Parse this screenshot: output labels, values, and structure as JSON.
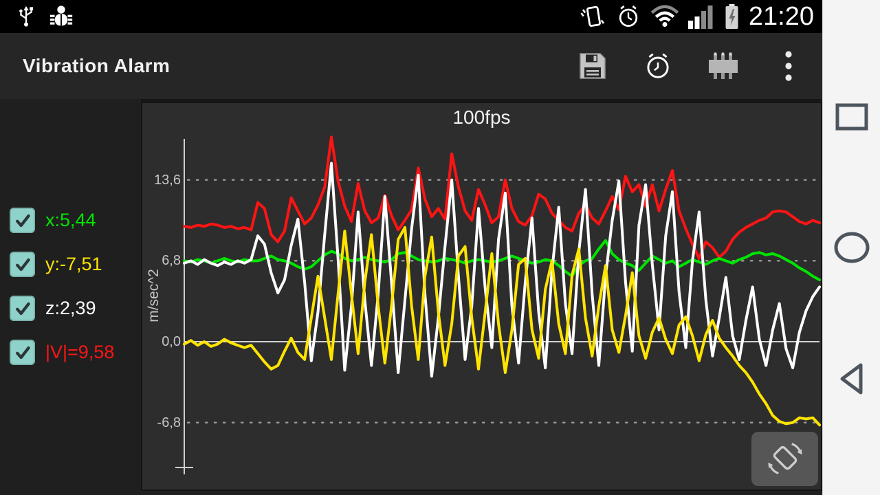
{
  "ui_colors": {
    "checkbox": "#8fd2c9",
    "chart_background": "#2d2d2d",
    "toolbar_background": "#262626",
    "navbar_background": "#f4f4f4",
    "x_green": "#00e400",
    "y_yellow": "#ffe400",
    "z_white": "#ffffff",
    "v_red": "#ff1414"
  },
  "status_bar": {
    "time": "21:20",
    "icons_left": [
      "usb-icon",
      "debug-bug-icon"
    ],
    "icons_right": [
      "vibrate-icon",
      "alarm-icon",
      "wifi-icon",
      "cell-signal-icon",
      "battery-charging-icon"
    ]
  },
  "toolbar": {
    "title": "Vibration Alarm",
    "actions": [
      "save",
      "alarm",
      "sensor-chip",
      "overflow-menu"
    ]
  },
  "legend": {
    "items": [
      {
        "id": "x",
        "label": "x:5,44",
        "color": "#00e400",
        "checked": true
      },
      {
        "id": "y",
        "label": "y:-7,51",
        "color": "#ffe400",
        "checked": true
      },
      {
        "id": "z",
        "label": "z:2,39",
        "color": "#ffffff",
        "checked": true
      },
      {
        "id": "v",
        "label": "|V|=9,58",
        "color": "#ff1414",
        "checked": true
      }
    ]
  },
  "chart": {
    "title": "100fps",
    "ylabel": "m/sec^2"
  },
  "chart_data": {
    "type": "line",
    "title": "100fps",
    "xlabel": "",
    "ylabel": "m/sec^2",
    "ylim": [
      -11,
      17.3
    ],
    "x_axis": {
      "tick_labels_visible": false,
      "n_points": 96
    },
    "yticks": [
      {
        "label": "13,6",
        "value": 13.6,
        "grid": "dotted"
      },
      {
        "label": "6,8",
        "value": 6.8,
        "grid": "dotted"
      },
      {
        "label": "0,0",
        "value": 0.0,
        "grid": "solid"
      },
      {
        "label": "-6,8",
        "value": -6.8,
        "grid": "dotted"
      }
    ],
    "legend_position": "left",
    "draw_order": [
      3,
      0,
      2,
      1
    ],
    "series": [
      {
        "name": "x",
        "current_value": 5.44,
        "color": "#00e400",
        "values": [
          6.8,
          6.7,
          6.9,
          6.8,
          6.6,
          6.8,
          7.0,
          6.8,
          6.7,
          6.9,
          6.8,
          6.8,
          7.0,
          7.2,
          6.9,
          6.8,
          6.6,
          6.3,
          6.1,
          6.3,
          6.8,
          7.3,
          7.6,
          7.4,
          7.0,
          6.8,
          6.9,
          7.1,
          6.9,
          6.8,
          6.7,
          6.9,
          7.4,
          7.5,
          7.2,
          6.9,
          6.8,
          6.7,
          6.8,
          7.0,
          6.9,
          6.8,
          6.6,
          6.8,
          6.9,
          6.8,
          6.7,
          6.8,
          7.0,
          7.2,
          7.0,
          6.8,
          6.6,
          6.7,
          6.9,
          6.8,
          6.4,
          5.9,
          5.5,
          6.4,
          6.8,
          7.0,
          7.8,
          8.5,
          7.4,
          6.9,
          6.6,
          6.4,
          6.0,
          6.6,
          7.2,
          6.9,
          6.6,
          6.8,
          6.3,
          6.6,
          6.9,
          6.7,
          6.5,
          6.8,
          7.0,
          6.8,
          6.6,
          6.9,
          7.1,
          7.4,
          7.5,
          7.3,
          7.4,
          7.2,
          6.9,
          6.6,
          6.2,
          5.9,
          5.5,
          5.2
        ]
      },
      {
        "name": "y",
        "current_value": -7.51,
        "color": "#ffe400",
        "values": [
          -0.2,
          0.1,
          -0.3,
          0.0,
          -0.4,
          -0.2,
          0.2,
          -0.1,
          -0.3,
          -0.5,
          -0.3,
          -1.0,
          -1.7,
          -2.3,
          -2.0,
          -0.8,
          0.3,
          -0.9,
          -1.5,
          2.0,
          5.5,
          2.0,
          -1.5,
          4.0,
          9.3,
          4.0,
          -1.0,
          5.0,
          9.0,
          3.0,
          -1.8,
          3.0,
          8.6,
          9.6,
          3.0,
          -1.5,
          5.5,
          8.8,
          2.5,
          -2.0,
          1.5,
          7.2,
          8.0,
          2.0,
          -2.3,
          2.5,
          7.4,
          1.5,
          -2.6,
          1.0,
          6.5,
          7.0,
          1.0,
          -1.4,
          4.4,
          6.8,
          1.5,
          -1.0,
          5.6,
          7.8,
          2.0,
          -1.2,
          3.0,
          6.4,
          1.0,
          -0.9,
          2.2,
          5.8,
          0.5,
          -1.4,
          0.8,
          2.0,
          0.2,
          -1.0,
          1.4,
          2.1,
          0.5,
          -1.6,
          0.6,
          1.8,
          0.3,
          -0.5,
          -1.2,
          -2.0,
          -2.6,
          -3.4,
          -4.4,
          -5.2,
          -6.2,
          -6.7,
          -6.9,
          -6.8,
          -6.4,
          -6.5,
          -6.4,
          -7.0
        ]
      },
      {
        "name": "z",
        "current_value": 2.39,
        "color": "#ffffff",
        "values": [
          6.6,
          6.8,
          6.5,
          6.9,
          6.6,
          6.4,
          6.7,
          6.5,
          6.8,
          6.6,
          6.9,
          8.9,
          8.2,
          5.8,
          4.1,
          5.2,
          8.1,
          10.3,
          5.0,
          -1.6,
          2.5,
          9.0,
          15.0,
          7.0,
          -2.4,
          3.0,
          10.9,
          3.5,
          -2.0,
          4.0,
          12.2,
          5.0,
          -2.6,
          3.5,
          9.5,
          14.0,
          4.0,
          -2.9,
          2.0,
          8.0,
          13.6,
          5.5,
          -1.5,
          3.0,
          11.2,
          4.5,
          -0.5,
          8.6,
          12.5,
          3.0,
          -1.8,
          5.0,
          10.4,
          2.5,
          -2.2,
          6.0,
          11.3,
          3.2,
          -1.0,
          7.5,
          12.8,
          4.0,
          -2.0,
          5.5,
          10.2,
          13.5,
          5.0,
          -0.8,
          9.8,
          13.2,
          6.5,
          1.0,
          8.9,
          12.6,
          4.2,
          -0.5,
          6.8,
          10.9,
          3.5,
          -1.2,
          2.0,
          5.4,
          0.5,
          -1.5,
          1.8,
          4.6,
          0.2,
          -2.0,
          1.0,
          3.2,
          -0.6,
          -2.2,
          0.8,
          2.6,
          3.8,
          4.6
        ]
      },
      {
        "name": "|V|",
        "current_value": 9.58,
        "color": "#ff1414",
        "values": [
          9.7,
          9.6,
          9.8,
          9.7,
          9.9,
          9.8,
          9.6,
          9.7,
          9.5,
          9.6,
          9.4,
          11.7,
          11.2,
          9.0,
          8.4,
          9.3,
          12.1,
          11.0,
          9.9,
          10.4,
          11.5,
          13.0,
          17.2,
          13.5,
          11.4,
          10.1,
          13.3,
          11.0,
          10.0,
          10.4,
          12.3,
          10.6,
          9.4,
          10.2,
          11.1,
          14.6,
          12.0,
          10.5,
          11.2,
          10.3,
          15.8,
          13.0,
          11.0,
          10.2,
          12.8,
          11.5,
          10.0,
          10.5,
          13.6,
          11.2,
          10.1,
          9.8,
          10.6,
          12.4,
          12.0,
          10.8,
          10.2,
          9.6,
          9.3,
          10.8,
          11.5,
          10.4,
          9.9,
          11.0,
          12.2,
          11.1,
          13.9,
          12.6,
          13.2,
          11.4,
          13.2,
          11.0,
          12.8,
          14.4,
          11.0,
          9.5,
          8.2,
          7.0,
          8.4,
          7.9,
          7.1,
          7.6,
          8.6,
          9.2,
          9.6,
          9.9,
          10.2,
          10.4,
          10.9,
          11.0,
          10.9,
          10.5,
          10.1,
          9.9,
          10.2,
          10.0
        ]
      }
    ]
  },
  "nav_bar": {
    "buttons": [
      {
        "name": "recents",
        "shape": "square"
      },
      {
        "name": "home",
        "shape": "circle"
      },
      {
        "name": "back",
        "shape": "triangle-left"
      }
    ]
  },
  "rotate_control": {
    "name": "screen-rotation"
  }
}
